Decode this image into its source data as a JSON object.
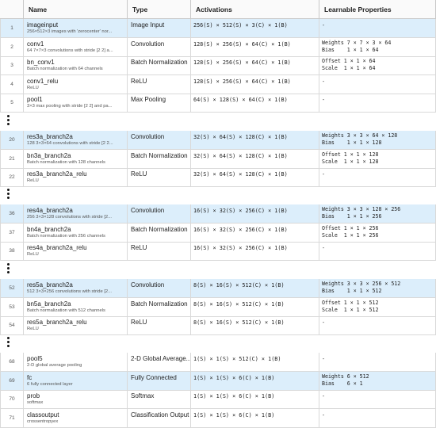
{
  "columns": {
    "idx": "",
    "name": "Name",
    "type": "Type",
    "activations": "Activations",
    "learnables": "Learnable Properties"
  },
  "groups": [
    {
      "rows": [
        {
          "idx": "1",
          "name": "imageinput",
          "desc": "256×512×3 images with 'zerocenter' nor...",
          "type": "Image Input",
          "act": "256(S) × 512(S) × 3(C) × 1(B)",
          "learn": [
            "-"
          ],
          "hl": true
        },
        {
          "idx": "2",
          "name": "conv1",
          "desc": "64 7×7×3 convolutions with stride [2 2] a...",
          "type": "Convolution",
          "act": "128(S) × 256(S) × 64(C) × 1(B)",
          "learn": [
            "Weights 7 × 7 × 3 × 64",
            "Bias    1 × 1 × 64"
          ],
          "hl": false
        },
        {
          "idx": "3",
          "name": "bn_conv1",
          "desc": "Batch normalization with 64 channels",
          "type": "Batch Normalization",
          "act": "128(S) × 256(S) × 64(C) × 1(B)",
          "learn": [
            "Offset 1 × 1 × 64",
            "Scale  1 × 1 × 64"
          ],
          "hl": false
        },
        {
          "idx": "4",
          "name": "conv1_relu",
          "desc": "ReLU",
          "type": "ReLU",
          "act": "128(S) × 256(S) × 64(C) × 1(B)",
          "learn": [
            "-"
          ],
          "hl": false
        },
        {
          "idx": "5",
          "name": "pool1",
          "desc": "3×3 max pooling with stride [2 2] and pa...",
          "type": "Max Pooling",
          "act": "64(S) × 128(S) × 64(C) × 1(B)",
          "learn": [
            "-"
          ],
          "hl": false
        }
      ]
    },
    {
      "rows": [
        {
          "idx": "20",
          "name": "res3a_branch2a",
          "desc": "128 3×3×64 convolutions with stride [2 2...",
          "type": "Convolution",
          "act": "32(S) × 64(S) × 128(C) × 1(B)",
          "learn": [
            "Weights 3 × 3 × 64 × 128",
            "Bias    1 × 1 × 128"
          ],
          "hl": true
        },
        {
          "idx": "21",
          "name": "bn3a_branch2a",
          "desc": "Batch normalization with 128 channels",
          "type": "Batch Normalization",
          "act": "32(S) × 64(S) × 128(C) × 1(B)",
          "learn": [
            "Offset 1 × 1 × 128",
            "Scale  1 × 1 × 128"
          ],
          "hl": false
        },
        {
          "idx": "22",
          "name": "res3a_branch2a_relu",
          "desc": "ReLU",
          "type": "ReLU",
          "act": "32(S) × 64(S) × 128(C) × 1(B)",
          "learn": [
            "-"
          ],
          "hl": false
        }
      ]
    },
    {
      "rows": [
        {
          "idx": "36",
          "name": "res4a_branch2a",
          "desc": "256 3×3×128 convolutions with stride [2...",
          "type": "Convolution",
          "act": "16(S) × 32(S) × 256(C) × 1(B)",
          "learn": [
            "Weights 3 × 3 × 128 × 256",
            "Bias    1 × 1 × 256"
          ],
          "hl": true
        },
        {
          "idx": "37",
          "name": "bn4a_branch2a",
          "desc": "Batch normalization with 256 channels",
          "type": "Batch Normalization",
          "act": "16(S) × 32(S) × 256(C) × 1(B)",
          "learn": [
            "Offset 1 × 1 × 256",
            "Scale  1 × 1 × 256"
          ],
          "hl": false
        },
        {
          "idx": "38",
          "name": "res4a_branch2a_relu",
          "desc": "ReLU",
          "type": "ReLU",
          "act": "16(S) × 32(S) × 256(C) × 1(B)",
          "learn": [
            "-"
          ],
          "hl": false
        }
      ]
    },
    {
      "rows": [
        {
          "idx": "52",
          "name": "res5a_branch2a",
          "desc": "512 3×3×256 convolutions with stride [2...",
          "type": "Convolution",
          "act": "8(S) × 16(S) × 512(C) × 1(B)",
          "learn": [
            "Weights 3 × 3 × 256 × 512",
            "Bias    1 × 1 × 512"
          ],
          "hl": true
        },
        {
          "idx": "53",
          "name": "bn5a_branch2a",
          "desc": "Batch normalization with 512 channels",
          "type": "Batch Normalization",
          "act": "8(S) × 16(S) × 512(C) × 1(B)",
          "learn": [
            "Offset 1 × 1 × 512",
            "Scale  1 × 1 × 512"
          ],
          "hl": false
        },
        {
          "idx": "54",
          "name": "res5a_branch2a_relu",
          "desc": "ReLU",
          "type": "ReLU",
          "act": "8(S) × 16(S) × 512(C) × 1(B)",
          "learn": [
            "-"
          ],
          "hl": false
        }
      ]
    },
    {
      "rows": [
        {
          "idx": "68",
          "name": "pool5",
          "desc": "2-D global average pooling",
          "type": "2-D Global Average...",
          "act": "1(S) × 1(S) × 512(C) × 1(B)",
          "learn": [
            "-"
          ],
          "hl": false
        },
        {
          "idx": "69",
          "name": "fc",
          "desc": "6 fully connected layer",
          "type": "Fully Connected",
          "act": "1(S) × 1(S) × 6(C) × 1(B)",
          "learn": [
            "Weights 6 × 512",
            "Bias    6 × 1"
          ],
          "hl": true
        },
        {
          "idx": "70",
          "name": "prob",
          "desc": "softmax",
          "type": "Softmax",
          "act": "1(S) × 1(S) × 6(C) × 1(B)",
          "learn": [
            "-"
          ],
          "hl": false
        },
        {
          "idx": "71",
          "name": "classoutput",
          "desc": "crossentropyex",
          "type": "Classification Output",
          "act": "1(S) × 1(S) × 6(C) × 1(B)",
          "learn": [
            "-"
          ],
          "hl": false
        }
      ]
    }
  ],
  "colors": {
    "highlight": "#dceefb",
    "grid": "#d9d9d9"
  }
}
